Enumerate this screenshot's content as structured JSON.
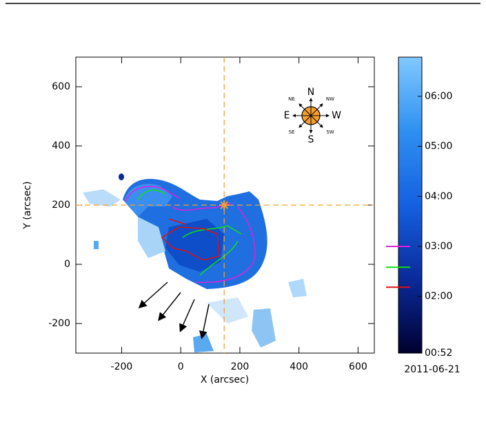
{
  "chart_data": {
    "type": "map",
    "xlabel": "X (arcsec)",
    "ylabel": "Y (arcsec)",
    "xlim": [
      -355,
      655
    ],
    "ylim": [
      -300,
      700
    ],
    "xticks": [
      -200,
      0,
      200,
      400,
      600
    ],
    "yticks": [
      -200,
      0,
      200,
      400,
      600
    ],
    "crosshair": [
      147,
      200
    ],
    "crosshair_color": "#f0a030",
    "colorbar": {
      "clim": [
        52,
        407
      ],
      "ticks": [
        {
          "value": 52,
          "label": "00:52"
        },
        {
          "value": 120,
          "label": "02:00"
        },
        {
          "value": 180,
          "label": "03:00"
        },
        {
          "value": 240,
          "label": "04:00"
        },
        {
          "value": 300,
          "label": "05:00"
        },
        {
          "value": 360,
          "label": "06:00"
        }
      ],
      "colors": [
        "#000030",
        "#0a2a9a",
        "#1560e0",
        "#2f90f0",
        "#80c8ff"
      ],
      "date": "2011-06-21"
    },
    "contours": [
      {
        "color": "#e020e0",
        "level": 180
      },
      {
        "color": "#10e010",
        "level": 155
      },
      {
        "color": "#e01010",
        "level": 131
      }
    ],
    "compass": {
      "labels": [
        "N",
        "S",
        "E",
        "W",
        "NE",
        "NW",
        "SE",
        "SW"
      ]
    }
  }
}
